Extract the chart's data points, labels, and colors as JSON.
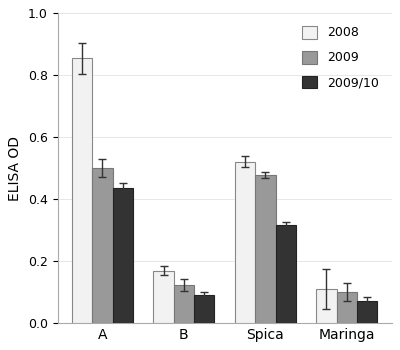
{
  "categories": [
    "A",
    "B",
    "Spica",
    "Maringa"
  ],
  "series": [
    {
      "label": "2008",
      "color": "#f2f2f2",
      "edgecolor": "#888888",
      "values": [
        0.855,
        0.168,
        0.52,
        0.11
      ],
      "errors": [
        0.05,
        0.015,
        0.018,
        0.065
      ]
    },
    {
      "label": "2009",
      "color": "#999999",
      "edgecolor": "#777777",
      "values": [
        0.5,
        0.122,
        0.478,
        0.1
      ],
      "errors": [
        0.028,
        0.018,
        0.01,
        0.028
      ]
    },
    {
      "label": "2009/10",
      "color": "#333333",
      "edgecolor": "#222222",
      "values": [
        0.435,
        0.09,
        0.315,
        0.072
      ],
      "errors": [
        0.016,
        0.008,
        0.012,
        0.01
      ]
    }
  ],
  "ylabel": "ELISA OD",
  "ylim": [
    0.0,
    1.0
  ],
  "yticks": [
    0.0,
    0.2,
    0.4,
    0.6,
    0.8,
    1.0
  ],
  "bar_width": 0.25,
  "legend_loc": "upper right",
  "background_color": "#ffffff",
  "capsize": 3
}
